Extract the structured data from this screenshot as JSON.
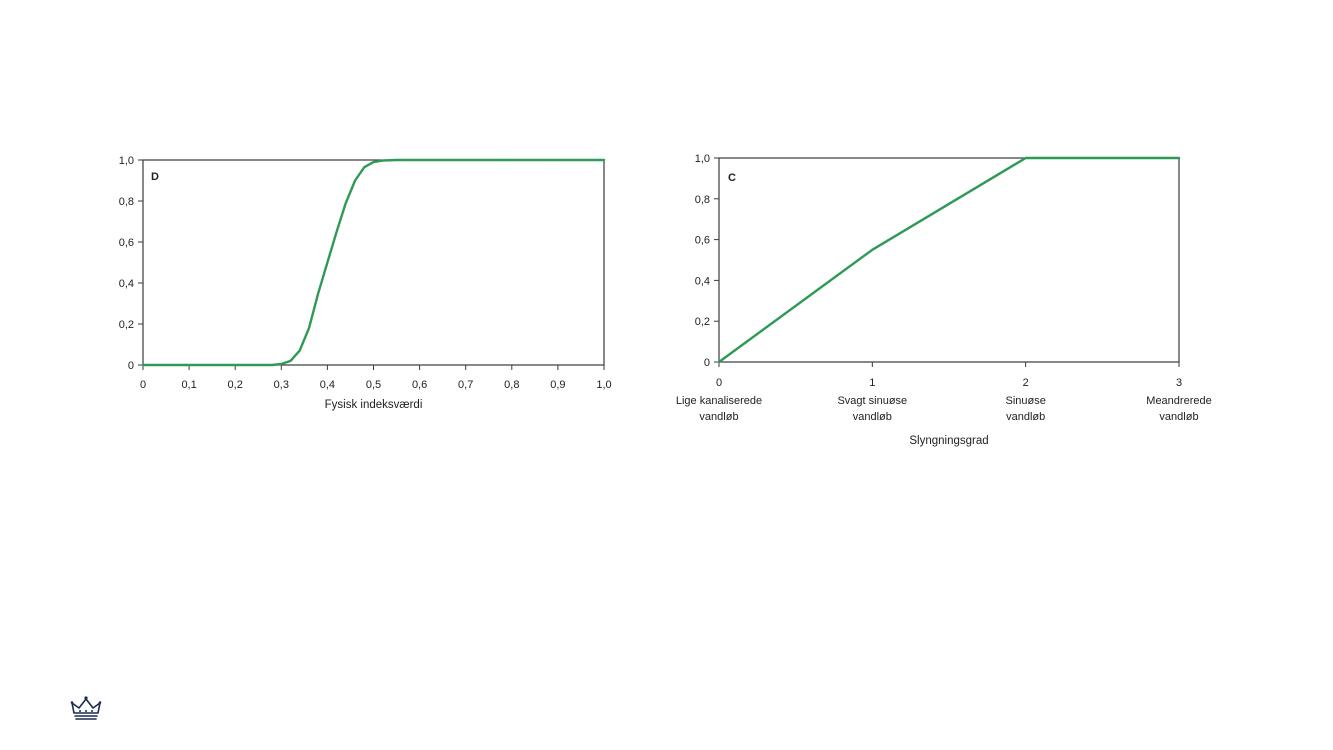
{
  "colors": {
    "series": "#2e9a56",
    "frame": "#3a3a3a"
  },
  "chart_data": [
    {
      "type": "line",
      "panel_label": "D",
      "xlabel": "Fysisk indeksværdi",
      "ylabel": "",
      "xlim": [
        0,
        1
      ],
      "ylim": [
        0,
        1
      ],
      "x_ticks": [
        0,
        0.1,
        0.2,
        0.3,
        0.4,
        0.5,
        0.6,
        0.7,
        0.8,
        0.9,
        1.0
      ],
      "x_tick_labels": [
        "0",
        "0,1",
        "0,2",
        "0,3",
        "0,4",
        "0,5",
        "0,6",
        "0,7",
        "0,8",
        "0,9",
        "1,0"
      ],
      "y_ticks": [
        0,
        0.2,
        0.4,
        0.6,
        0.8,
        1.0
      ],
      "y_tick_labels": [
        "0",
        "0,2",
        "0,4",
        "0,6",
        "0,8",
        "1,0"
      ],
      "grid": false,
      "series": [
        {
          "x": [
            0,
            0.1,
            0.2,
            0.28,
            0.3,
            0.32,
            0.34,
            0.36,
            0.38,
            0.4,
            0.42,
            0.44,
            0.46,
            0.48,
            0.5,
            0.52,
            0.55,
            0.6,
            0.7,
            0.8,
            0.9,
            1.0
          ],
          "y": [
            0,
            0,
            0,
            0,
            0.005,
            0.02,
            0.07,
            0.18,
            0.35,
            0.5,
            0.65,
            0.79,
            0.9,
            0.965,
            0.99,
            0.997,
            1.0,
            1.0,
            1.0,
            1.0,
            1.0,
            1.0
          ]
        }
      ]
    },
    {
      "type": "line",
      "panel_label": "C",
      "xlabel": "Slyngningsgrad",
      "ylabel": "",
      "xlim": [
        0,
        3
      ],
      "ylim": [
        0,
        1
      ],
      "x_ticks": [
        0,
        1,
        2,
        3
      ],
      "x_tick_labels": [
        "0",
        "1",
        "2",
        "3"
      ],
      "x_categories": [
        [
          "Lige kanaliserede",
          "vandløb"
        ],
        [
          "Svagt sinuøse",
          "vandløb"
        ],
        [
          "Sinuøse",
          "vandløb"
        ],
        [
          "Meandrerede",
          "vandløb"
        ]
      ],
      "y_ticks": [
        0,
        0.2,
        0.4,
        0.6,
        0.8,
        1.0
      ],
      "y_tick_labels": [
        "0",
        "0,2",
        "0,4",
        "0,6",
        "0,8",
        "1,0"
      ],
      "grid": false,
      "series": [
        {
          "x": [
            0,
            1,
            2,
            3
          ],
          "y": [
            0,
            0.55,
            1.0,
            1.0
          ]
        }
      ]
    }
  ]
}
